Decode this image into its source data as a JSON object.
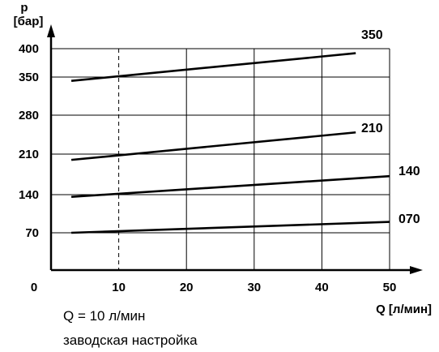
{
  "chart_data": {
    "type": "line",
    "y_axis_symbol": "p",
    "y_axis_unit": "[бар]",
    "x_axis_label": "Q [л/мин]",
    "x_ticks": [
      0,
      10,
      20,
      30,
      40,
      50
    ],
    "y_ticks": [
      70,
      140,
      210,
      280,
      350,
      400
    ],
    "xlim": [
      0,
      50
    ],
    "ylim": [
      0,
      400
    ],
    "grid": true,
    "reference_line": {
      "x": 10,
      "style": "dashed"
    },
    "series": [
      {
        "name": "350",
        "x": [
          3,
          45
        ],
        "y": [
          343,
          392
        ]
      },
      {
        "name": "210",
        "x": [
          3,
          45
        ],
        "y": [
          200,
          249
        ]
      },
      {
        "name": "140",
        "x": [
          3,
          50
        ],
        "y": [
          136,
          172
        ]
      },
      {
        "name": "070",
        "x": [
          3,
          50
        ],
        "y": [
          70,
          90
        ]
      }
    ]
  },
  "notes": {
    "line1": "Q = 10 л/мин",
    "line2": "заводская настройка"
  },
  "colors": {
    "line": "#000000",
    "grid": "#000000",
    "background": "#ffffff"
  }
}
